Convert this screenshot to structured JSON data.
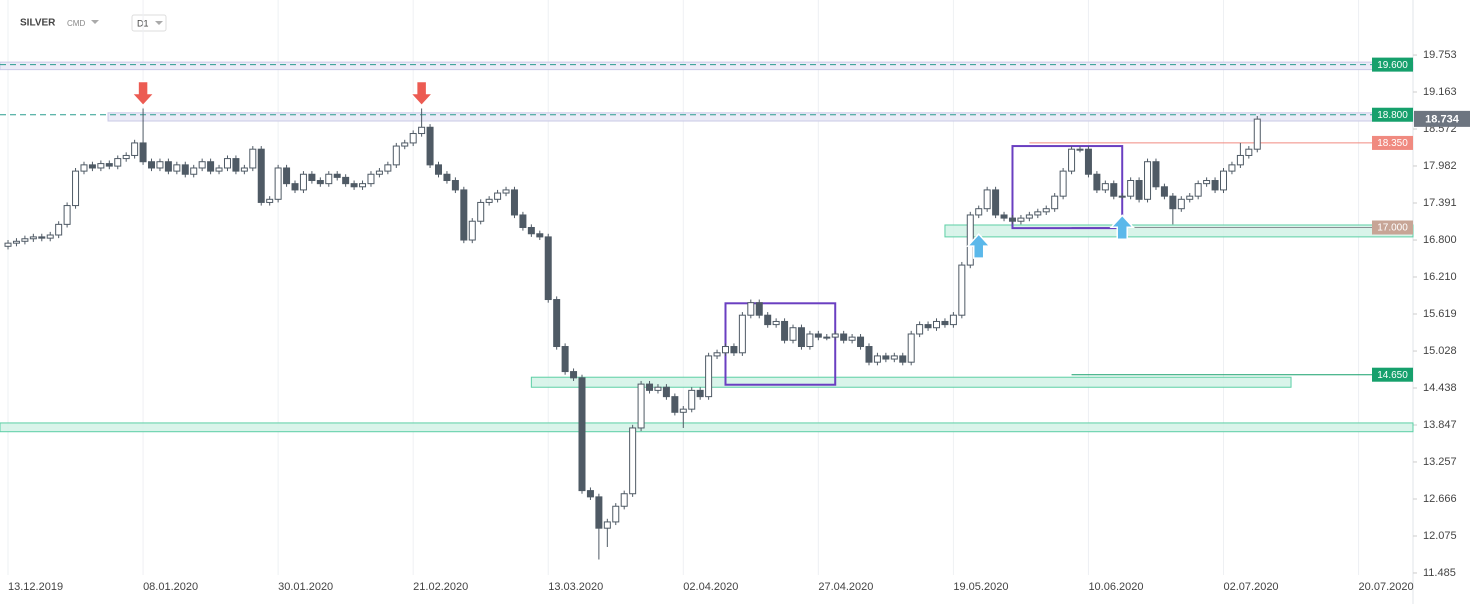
{
  "chart_data": {
    "type": "candlestick",
    "title": "SILVER",
    "subtitle": "CMD",
    "interval": "D1",
    "xlim": [
      -0.95,
      166.45
    ],
    "ylim": [
      11.4,
      20.1
    ],
    "grid": "x",
    "up_color": "#ffffff",
    "down_color": "#4f5a65",
    "xticks": [
      {
        "value": 0,
        "label": "13.12.2019"
      },
      {
        "value": 16,
        "label": "08.01.2020"
      },
      {
        "value": 32,
        "label": "30.01.2020"
      },
      {
        "value": 48,
        "label": "21.02.2020"
      },
      {
        "value": 64,
        "label": "13.03.2020"
      },
      {
        "value": 80,
        "label": "02.04.2020"
      },
      {
        "value": 96,
        "label": "27.04.2020"
      },
      {
        "value": 112,
        "label": "19.05.2020"
      },
      {
        "value": 128,
        "label": "10.06.2020"
      },
      {
        "value": 144,
        "label": "02.07.2020"
      },
      {
        "value": 160,
        "label": "20.07.2020"
      }
    ],
    "yticks": [
      19.753,
      19.163,
      18.572,
      17.982,
      17.391,
      {
        "value": 16.8,
        "label": "16.800"
      },
      {
        "value": 16.21,
        "label": "16.210"
      },
      15.619,
      15.028,
      14.438,
      13.847,
      13.257,
      12.666,
      12.075,
      11.485
    ],
    "open": [
      16.7,
      16.75,
      16.78,
      16.82,
      16.85,
      16.83,
      16.88,
      17.05,
      17.35,
      17.9,
      18.0,
      17.95,
      18.02,
      17.98,
      18.1,
      18.15,
      18.35,
      18.05,
      17.95,
      18.05,
      17.9,
      18.0,
      17.85,
      17.95,
      18.05,
      17.9,
      17.95,
      18.1,
      17.9,
      17.95,
      18.25,
      17.4,
      17.45,
      17.95,
      17.7,
      17.6,
      17.85,
      17.75,
      17.7,
      17.85,
      17.8,
      17.7,
      17.65,
      17.7,
      17.85,
      17.9,
      18.0,
      18.3,
      18.35,
      18.5,
      18.6,
      18.0,
      17.85,
      17.75,
      17.6,
      16.8,
      17.1,
      17.4,
      17.45,
      17.55,
      17.6,
      17.2,
      17.0,
      16.9,
      16.85,
      15.85,
      15.1,
      14.7,
      14.6,
      12.8,
      12.7,
      12.2,
      12.3,
      12.55,
      12.75,
      13.8,
      14.5,
      14.4,
      14.45,
      14.3,
      14.05,
      14.1,
      14.4,
      14.3,
      14.95,
      15.0,
      15.1,
      15.0,
      15.6,
      15.8,
      15.6,
      15.45,
      15.5,
      15.2,
      15.4,
      15.1,
      15.3,
      15.25,
      15.25,
      15.3,
      15.2,
      15.25,
      15.1,
      14.85,
      14.95,
      14.9,
      14.95,
      14.85,
      15.3,
      15.45,
      15.4,
      15.5,
      15.45,
      15.6,
      16.4,
      17.2,
      17.3,
      17.6,
      17.2,
      17.15,
      17.1,
      17.15,
      17.2,
      17.25,
      17.3,
      17.5,
      17.9,
      18.25,
      18.25,
      17.85,
      17.6,
      17.7,
      17.5,
      17.5,
      17.75,
      17.45,
      18.05,
      17.65,
      17.5,
      17.3,
      17.45,
      17.5,
      17.7,
      17.75,
      17.6,
      17.9,
      18.0,
      18.15,
      18.25
    ],
    "high": [
      16.8,
      16.83,
      16.87,
      16.9,
      16.9,
      16.93,
      17.1,
      17.4,
      17.95,
      18.05,
      18.05,
      18.07,
      18.07,
      18.15,
      18.2,
      18.4,
      18.9,
      18.1,
      18.1,
      18.1,
      18.05,
      18.05,
      18.0,
      18.1,
      18.1,
      18.0,
      18.15,
      18.15,
      18.0,
      18.3,
      18.3,
      17.5,
      18.0,
      18.0,
      17.75,
      17.9,
      17.9,
      17.8,
      17.9,
      17.9,
      17.85,
      17.75,
      17.75,
      17.9,
      17.95,
      18.05,
      18.35,
      18.4,
      18.55,
      18.9,
      18.65,
      18.05,
      17.9,
      17.8,
      17.65,
      17.15,
      17.45,
      17.5,
      17.6,
      17.65,
      17.65,
      17.25,
      17.05,
      16.95,
      16.9,
      15.9,
      15.15,
      14.75,
      14.65,
      12.85,
      12.75,
      12.35,
      12.6,
      12.8,
      13.85,
      14.55,
      14.55,
      14.5,
      14.5,
      14.35,
      14.15,
      14.45,
      14.45,
      15.0,
      15.05,
      15.15,
      15.15,
      15.65,
      15.85,
      15.85,
      15.65,
      15.55,
      15.55,
      15.45,
      15.45,
      15.35,
      15.35,
      15.3,
      15.35,
      15.35,
      15.3,
      15.3,
      15.15,
      15.0,
      15.0,
      15.0,
      15.0,
      15.35,
      15.5,
      15.5,
      15.55,
      15.55,
      15.65,
      16.45,
      17.25,
      17.35,
      17.65,
      17.65,
      17.25,
      17.2,
      17.2,
      17.25,
      17.3,
      17.35,
      17.55,
      17.95,
      18.3,
      18.3,
      18.3,
      17.9,
      17.75,
      17.75,
      17.55,
      17.8,
      17.8,
      18.1,
      18.1,
      17.7,
      17.55,
      17.5,
      17.55,
      17.75,
      17.8,
      17.8,
      17.95,
      18.05,
      18.35,
      18.3,
      18.78
    ],
    "low": [
      16.65,
      16.7,
      16.73,
      16.77,
      16.78,
      16.78,
      16.83,
      17.0,
      17.3,
      17.85,
      17.9,
      17.9,
      17.93,
      17.93,
      18.05,
      18.1,
      18.0,
      17.9,
      17.9,
      17.85,
      17.85,
      17.8,
      17.8,
      17.9,
      17.85,
      17.85,
      17.9,
      17.85,
      17.85,
      17.9,
      17.35,
      17.35,
      17.4,
      17.65,
      17.55,
      17.55,
      17.7,
      17.65,
      17.65,
      17.75,
      17.65,
      17.6,
      17.6,
      17.65,
      17.8,
      17.85,
      17.95,
      18.25,
      18.3,
      18.45,
      17.95,
      17.8,
      17.7,
      17.55,
      16.75,
      16.75,
      17.05,
      17.35,
      17.4,
      17.5,
      17.15,
      16.95,
      16.85,
      16.8,
      15.8,
      15.05,
      14.65,
      14.55,
      12.75,
      12.65,
      11.7,
      11.9,
      12.25,
      12.5,
      12.7,
      13.75,
      14.35,
      14.35,
      14.25,
      14.0,
      13.8,
      14.05,
      14.25,
      14.25,
      14.9,
      14.95,
      14.95,
      14.95,
      15.55,
      15.55,
      15.4,
      15.4,
      15.15,
      15.15,
      15.05,
      15.05,
      15.2,
      15.2,
      15.2,
      15.15,
      15.15,
      15.05,
      14.8,
      14.8,
      14.85,
      14.85,
      14.8,
      14.8,
      15.25,
      15.35,
      15.35,
      15.4,
      15.4,
      15.55,
      16.35,
      17.15,
      17.25,
      17.15,
      17.1,
      17.05,
      17.05,
      17.1,
      17.15,
      17.2,
      17.25,
      17.45,
      17.85,
      18.2,
      17.8,
      17.55,
      17.55,
      17.45,
      17.45,
      17.45,
      17.4,
      17.4,
      17.6,
      17.45,
      17.05,
      17.25,
      17.4,
      17.45,
      17.65,
      17.55,
      17.55,
      17.85,
      17.95,
      18.1,
      18.2
    ],
    "close": [
      16.75,
      16.78,
      16.82,
      16.85,
      16.83,
      16.88,
      17.05,
      17.35,
      17.9,
      18.0,
      17.95,
      18.02,
      17.98,
      18.1,
      18.15,
      18.35,
      18.05,
      17.95,
      18.05,
      17.9,
      18.0,
      17.85,
      17.95,
      18.05,
      17.9,
      17.95,
      18.1,
      17.9,
      17.95,
      18.25,
      17.4,
      17.45,
      17.95,
      17.7,
      17.6,
      17.85,
      17.75,
      17.7,
      17.85,
      17.8,
      17.7,
      17.65,
      17.7,
      17.85,
      17.9,
      18.0,
      18.3,
      18.35,
      18.5,
      18.6,
      18.0,
      17.85,
      17.75,
      17.6,
      16.8,
      17.1,
      17.4,
      17.45,
      17.55,
      17.6,
      17.2,
      17.0,
      16.9,
      16.85,
      15.85,
      15.1,
      14.7,
      14.6,
      12.8,
      12.7,
      12.2,
      12.3,
      12.55,
      12.75,
      13.8,
      14.5,
      14.4,
      14.45,
      14.3,
      14.05,
      14.1,
      14.4,
      14.3,
      14.95,
      15.0,
      15.1,
      15.0,
      15.6,
      15.8,
      15.6,
      15.45,
      15.5,
      15.2,
      15.4,
      15.1,
      15.3,
      15.25,
      15.25,
      15.3,
      15.2,
      15.25,
      15.1,
      14.85,
      14.95,
      14.9,
      14.95,
      14.85,
      15.3,
      15.45,
      15.4,
      15.5,
      15.45,
      15.6,
      16.4,
      17.2,
      17.3,
      17.6,
      17.2,
      17.15,
      17.1,
      17.15,
      17.2,
      17.25,
      17.3,
      17.5,
      17.9,
      18.25,
      18.25,
      17.85,
      17.6,
      17.7,
      17.5,
      17.5,
      17.75,
      17.45,
      18.05,
      17.65,
      17.5,
      17.3,
      17.45,
      17.5,
      17.7,
      17.75,
      17.6,
      17.9,
      18.0,
      18.15,
      18.25,
      18.73
    ],
    "last": {
      "value": 18.734,
      "label": "18.734"
    },
    "zones": [
      {
        "y": [
          19.52,
          19.64
        ],
        "x": [
          -0.95,
          166.45
        ],
        "color": "#e8e8f6",
        "border": "#c9c9e6"
      },
      {
        "y": [
          18.7,
          18.83
        ],
        "x": [
          11.85,
          166.45
        ],
        "color": "#e8e8f6",
        "border": "#c9c9e6"
      },
      {
        "y": [
          16.85,
          17.04
        ],
        "x": [
          111,
          166.45
        ],
        "color": "#d2f2e6",
        "border": "#5ccfa5"
      },
      {
        "y": [
          14.45,
          14.61
        ],
        "x": [
          62,
          152
        ],
        "color": "#d2f2e6",
        "border": "#5ccfa5"
      },
      {
        "y": [
          13.74,
          13.88
        ],
        "x": [
          -0.95,
          166.45
        ],
        "color": "#d2f2e6",
        "border": "#5ccfa5"
      }
    ],
    "boxes": [
      {
        "y": [
          14.49,
          15.79
        ],
        "x": [
          85,
          98
        ],
        "color": "#6a3fc1"
      },
      {
        "y": [
          16.99,
          18.3
        ],
        "x": [
          119,
          132
        ],
        "color": "#6a3fc1"
      }
    ],
    "levels": [
      {
        "value": 19.6,
        "label": "19.600",
        "color": "#16a06c",
        "line": "#2a9d8f",
        "dashed": true,
        "from": -0.95
      },
      {
        "value": 18.8,
        "label": "18.800",
        "color": "#16a06c",
        "line": "#2a9d8f",
        "dashed": true,
        "from": -0.95
      },
      {
        "value": 18.35,
        "label": "18.350",
        "color": "#f08a80",
        "line": "#f08a80",
        "dashed": false,
        "from": 121
      },
      {
        "value": 17.0,
        "label": "17.000",
        "color": "#c7a596",
        "line": "#8a8f95",
        "dashed": false,
        "from": 126
      },
      {
        "value": 14.65,
        "label": "14.650",
        "color": "#16a06c",
        "line": "#16a06c",
        "dashed": false,
        "from": 126
      }
    ],
    "arrows": [
      {
        "kind": "down",
        "at": 16,
        "color": "#ec5b52"
      },
      {
        "kind": "down",
        "at": 49,
        "color": "#ec5b52"
      },
      {
        "kind": "up",
        "at": 115,
        "color": "#5bb8ea"
      },
      {
        "kind": "up",
        "at": 132,
        "color": "#5bb8ea"
      }
    ]
  }
}
